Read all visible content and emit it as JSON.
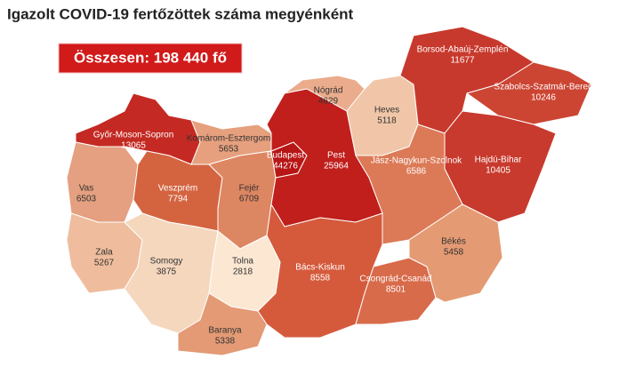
{
  "title": "Igazolt COVID-19 fertőzöttek száma megyénként",
  "total": "Összesen: 198 440 fő",
  "counties": [
    {
      "name": "Győr-Moson-Sopron",
      "value": 13065,
      "color": "#c42a23"
    },
    {
      "name": "Komárom-Esztergom",
      "value": 5653,
      "color": "#e6a07e"
    },
    {
      "name": "Vas",
      "value": 6503,
      "color": "#e4a080"
    },
    {
      "name": "Veszprém",
      "value": 7794,
      "color": "#d46440"
    },
    {
      "name": "Fejér",
      "value": 6709,
      "color": "#dd8662"
    },
    {
      "name": "Zala",
      "value": 5267,
      "color": "#efbd9d"
    },
    {
      "name": "Somogy",
      "value": 3875,
      "color": "#f5d7be"
    },
    {
      "name": "Tolna",
      "value": 2818,
      "color": "#fbe7d2"
    },
    {
      "name": "Baranya",
      "value": 5338,
      "color": "#e39a75"
    },
    {
      "name": "Budapest",
      "value": 44276,
      "color": "#b81515"
    },
    {
      "name": "Pest",
      "value": 25964,
      "color": "#c01f1c"
    },
    {
      "name": "Nógrád",
      "value": 4629,
      "color": "#eaac8c"
    },
    {
      "name": "Heves",
      "value": 5118,
      "color": "#f1c6a8"
    },
    {
      "name": "Borsod-Abaúj-Zemplén",
      "value": 11677,
      "color": "#c8392d"
    },
    {
      "name": "Szabolcs-Szatmár-Bereg",
      "value": 10246,
      "color": "#cc4533"
    },
    {
      "name": "Hajdú-Bihar",
      "value": 10405,
      "color": "#c83a2d"
    },
    {
      "name": "Jász-Nagykun-Szolnok",
      "value": 6586,
      "color": "#dc7a57"
    },
    {
      "name": "Bács-Kiskun",
      "value": 8558,
      "color": "#d55a3c"
    },
    {
      "name": "Csongrád-Csanád",
      "value": 8501,
      "color": "#d86b4a"
    },
    {
      "name": "Békés",
      "value": 5458,
      "color": "#e49a73"
    }
  ]
}
